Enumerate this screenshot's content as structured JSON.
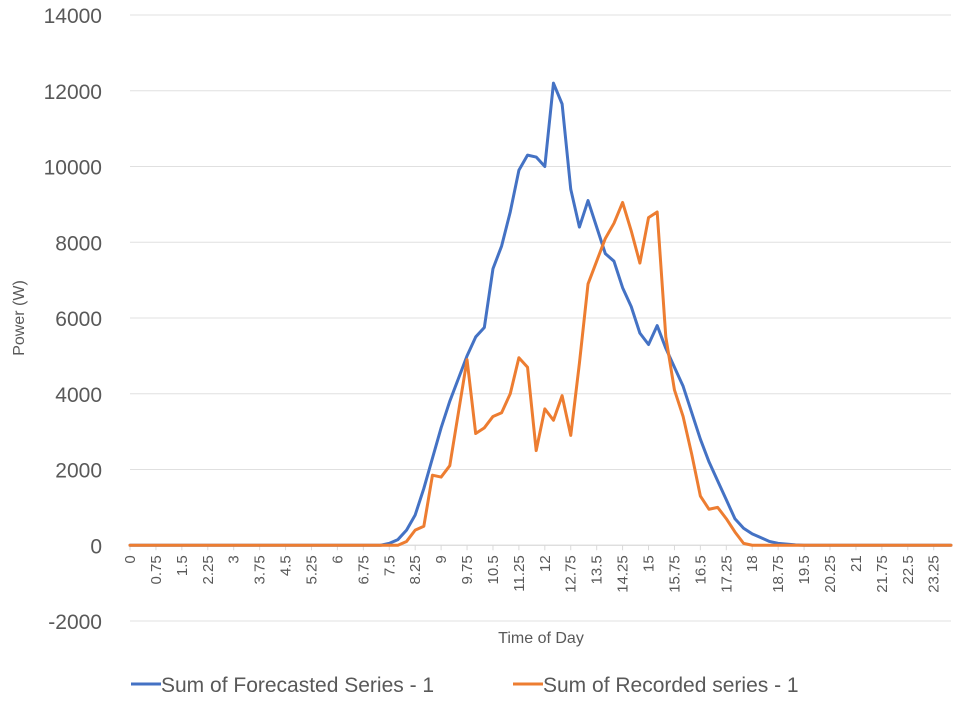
{
  "chart_data": {
    "type": "line",
    "title": "",
    "xlabel": "Time of Day",
    "ylabel": "Power (W)",
    "ylim": [
      -2000,
      14000
    ],
    "yticks": [
      14000,
      12000,
      10000,
      8000,
      6000,
      4000,
      2000,
      0,
      -2000
    ],
    "x_tick_labels": [
      "0",
      "0.75",
      "1.5",
      "2.25",
      "3",
      "3.75",
      "4.5",
      "5.25",
      "6",
      "6.75",
      "7.5",
      "8.25",
      "9",
      "9.75",
      "10.5",
      "11.25",
      "12",
      "12.75",
      "13.5",
      "14.25",
      "15",
      "15.75",
      "16.5",
      "17.25",
      "18",
      "18.75",
      "19.5",
      "20.25",
      "21",
      "21.75",
      "22.5",
      "23.25"
    ],
    "grid": "horizontal",
    "legend_position": "bottom",
    "colors": {
      "forecast": "#4472C4",
      "recorded": "#ED7D31"
    },
    "x_start": 0,
    "x_step": 0.25,
    "series": [
      {
        "name": "Sum of Forecasted Series - 1",
        "color": "#4472C4",
        "values": [
          0,
          0,
          0,
          0,
          0,
          0,
          0,
          0,
          0,
          0,
          0,
          0,
          0,
          0,
          0,
          0,
          0,
          0,
          0,
          0,
          0,
          0,
          0,
          0,
          0,
          0,
          0,
          0,
          0,
          0,
          50,
          150,
          400,
          800,
          1500,
          2300,
          3100,
          3800,
          4400,
          5000,
          5500,
          5750,
          7300,
          7900,
          8800,
          9900,
          10300,
          10250,
          10000,
          12200,
          11650,
          9400,
          8400,
          9100,
          8400,
          7700,
          7500,
          6800,
          6300,
          5600,
          5300,
          5800,
          5200,
          4700,
          4200,
          3500,
          2800,
          2200,
          1700,
          1200,
          700,
          450,
          300,
          200,
          100,
          50,
          30,
          10,
          0,
          0,
          0,
          0,
          0,
          0,
          0,
          0,
          0,
          0,
          0,
          0,
          0,
          0,
          0,
          0,
          0,
          0
        ]
      },
      {
        "name": "Sum of Recorded series - 1",
        "color": "#ED7D31",
        "values": [
          0,
          0,
          0,
          0,
          0,
          0,
          0,
          0,
          0,
          0,
          0,
          0,
          0,
          0,
          0,
          0,
          0,
          0,
          0,
          0,
          0,
          0,
          0,
          0,
          0,
          0,
          0,
          0,
          0,
          0,
          0,
          0,
          100,
          400,
          500,
          1850,
          1800,
          2100,
          3500,
          4900,
          2950,
          3100,
          3400,
          3500,
          4000,
          4950,
          4700,
          2500,
          3600,
          3300,
          3950,
          2900,
          4800,
          6900,
          7500,
          8100,
          8500,
          9050,
          8300,
          7450,
          8650,
          8800,
          5500,
          4100,
          3400,
          2400,
          1300,
          950,
          1000,
          700,
          350,
          50,
          0,
          0,
          0,
          0,
          0,
          0,
          0,
          0,
          0,
          0,
          0,
          0,
          0,
          0,
          0,
          0,
          0,
          0,
          0,
          0,
          0,
          0,
          0,
          0
        ]
      }
    ]
  }
}
